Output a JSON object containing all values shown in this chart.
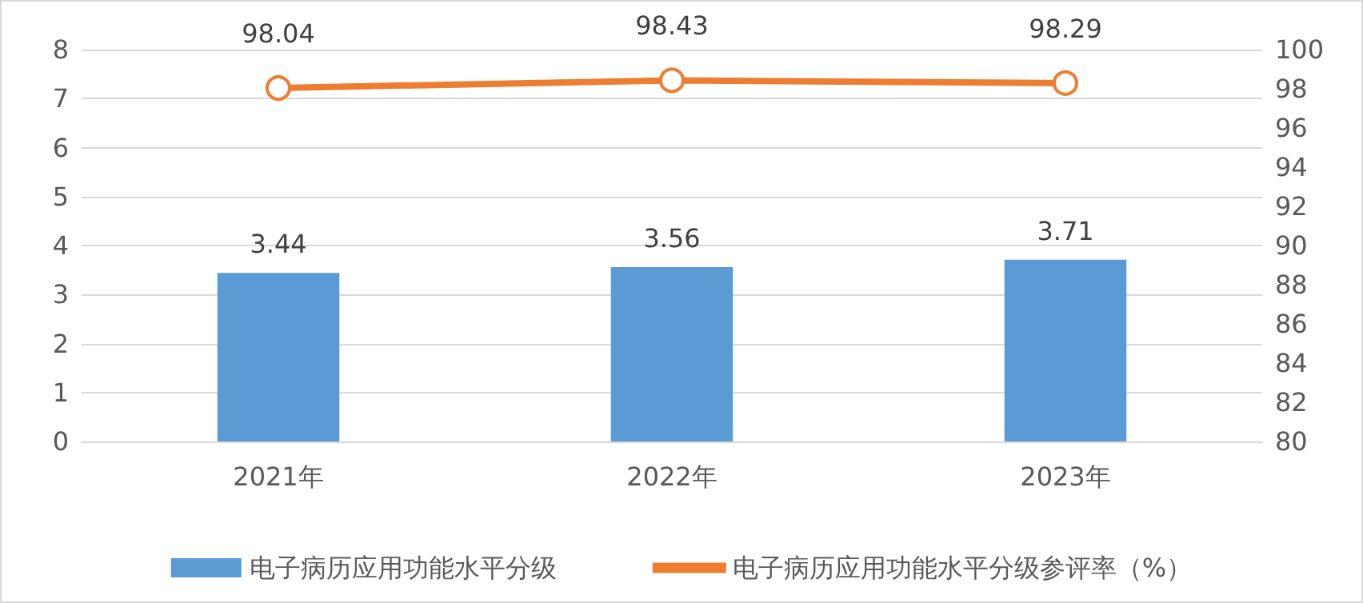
{
  "chart_data": {
    "type": "bar",
    "categories": [
      "2021年",
      "2022年",
      "2023年"
    ],
    "series": [
      {
        "name": "电子病历应用功能水平分级",
        "color": "#5b9bd5",
        "values": [
          3.44,
          3.56,
          3.71
        ]
      },
      {
        "name": "电子病历应用功能水平分级参评率（%）",
        "type": "line",
        "axis": "y2",
        "color": "#ed7d31",
        "values": [
          98.04,
          98.43,
          98.29
        ],
        "marker": "circle"
      }
    ],
    "ylim": [
      0,
      8
    ],
    "yticks": [
      0,
      1,
      2,
      3,
      4,
      5,
      6,
      7,
      8
    ],
    "y2lim": [
      80,
      100
    ],
    "y2ticks": [
      80,
      82,
      84,
      86,
      88,
      90,
      92,
      94,
      96,
      98,
      100
    ],
    "grid": "y",
    "legend": "bottom",
    "data_labels": true
  }
}
